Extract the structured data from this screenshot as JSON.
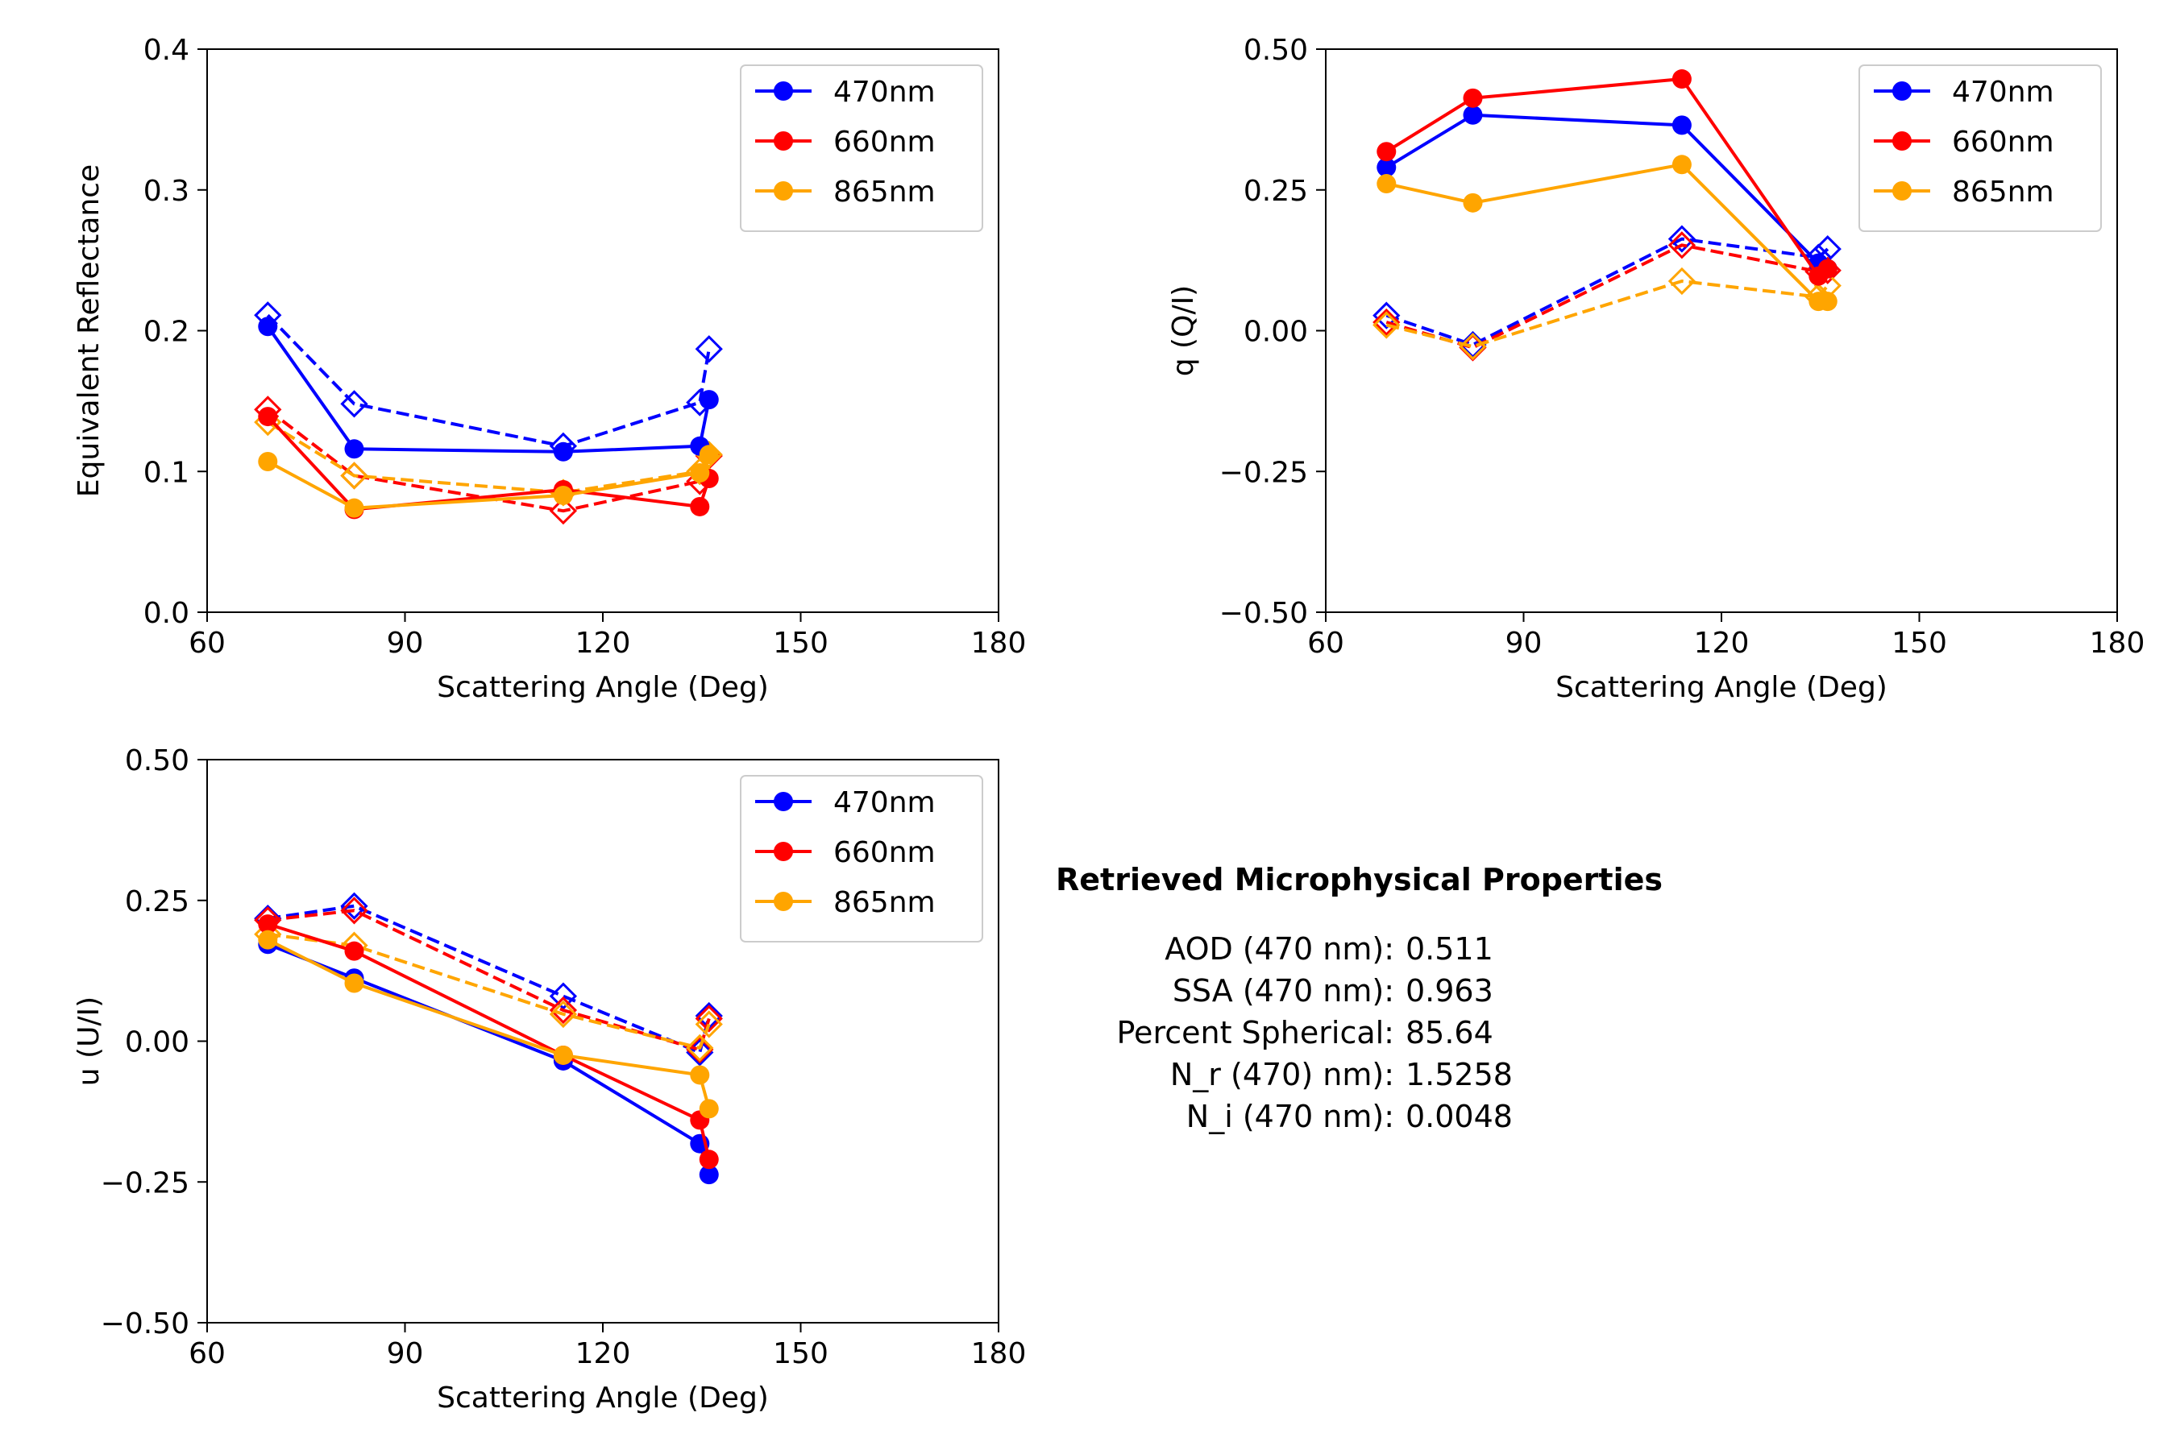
{
  "chart_data": [
    {
      "type": "line",
      "id": "reflectance",
      "title": "",
      "xlabel": "Scattering Angle (Deg)",
      "ylabel": "Equivalent Reflectance",
      "xlim": [
        60,
        180
      ],
      "ylim": [
        0.0,
        0.4
      ],
      "xticks": [
        "60",
        "90",
        "120",
        "150",
        "180"
      ],
      "yticks": [
        "0.0",
        "0.1",
        "0.2",
        "0.3",
        "0.4"
      ],
      "legend": "top-right",
      "grid": false,
      "series": [
        {
          "name": "470nm",
          "color": "#0000ff",
          "style": "solid",
          "marker": "circle",
          "legend": true,
          "points": [
            [
              69.2,
              0.203
            ],
            [
              82.3,
              0.116
            ],
            [
              114,
              0.114
            ],
            [
              134.7,
              0.118
            ],
            [
              136.1,
              0.151
            ]
          ]
        },
        {
          "name": "660nm",
          "color": "#ff0000",
          "style": "solid",
          "marker": "circle",
          "legend": true,
          "points": [
            [
              69.2,
              0.139
            ],
            [
              82.3,
              0.073
            ],
            [
              114,
              0.087
            ],
            [
              134.7,
              0.075
            ],
            [
              136.1,
              0.095
            ]
          ]
        },
        {
          "name": "865nm",
          "color": "#ffa500",
          "style": "solid",
          "marker": "circle",
          "legend": true,
          "points": [
            [
              69.2,
              0.107
            ],
            [
              82.3,
              0.074
            ],
            [
              114,
              0.083
            ],
            [
              134.7,
              0.099
            ],
            [
              136.1,
              0.112
            ]
          ]
        },
        {
          "name": "",
          "color": "#0000ff",
          "style": "dashed",
          "marker": "diamond",
          "legend": false,
          "points": [
            [
              69.2,
              0.211
            ],
            [
              82.3,
              0.148
            ],
            [
              114,
              0.118
            ],
            [
              134.7,
              0.149
            ],
            [
              136.1,
              0.187
            ]
          ]
        },
        {
          "name": "",
          "color": "#ff0000",
          "style": "dashed",
          "marker": "diamond",
          "legend": false,
          "points": [
            [
              69.2,
              0.144
            ],
            [
              82.3,
              0.097
            ],
            [
              114,
              0.072
            ],
            [
              134.7,
              0.093
            ],
            [
              136.1,
              0.111
            ]
          ]
        },
        {
          "name": "",
          "color": "#ffa500",
          "style": "dashed",
          "marker": "diamond",
          "legend": false,
          "points": [
            [
              69.2,
              0.135
            ],
            [
              82.3,
              0.097
            ],
            [
              114,
              0.085
            ],
            [
              134.7,
              0.1
            ],
            [
              136.1,
              0.112
            ]
          ]
        }
      ]
    },
    {
      "type": "line",
      "id": "q",
      "title": "",
      "xlabel": "Scattering Angle (Deg)",
      "ylabel": "q (Q/I)",
      "xlim": [
        60,
        180
      ],
      "ylim": [
        -0.5,
        0.5
      ],
      "xticks": [
        "60",
        "90",
        "120",
        "150",
        "180"
      ],
      "yticks": [
        "−0.50",
        "−0.25",
        "0.00",
        "0.25",
        "0.50"
      ],
      "legend": "top-right",
      "grid": false,
      "series": [
        {
          "name": "470nm",
          "color": "#0000ff",
          "style": "solid",
          "marker": "circle",
          "legend": true,
          "points": [
            [
              69.2,
              0.29
            ],
            [
              82.3,
              0.383
            ],
            [
              114,
              0.365
            ],
            [
              134.7,
              0.12
            ],
            [
              136.1,
              0.11
            ]
          ]
        },
        {
          "name": "660nm",
          "color": "#ff0000",
          "style": "solid",
          "marker": "circle",
          "legend": true,
          "points": [
            [
              69.2,
              0.318
            ],
            [
              82.3,
              0.413
            ],
            [
              114,
              0.447
            ],
            [
              134.7,
              0.097
            ],
            [
              136.1,
              0.11
            ]
          ]
        },
        {
          "name": "865nm",
          "color": "#ffa500",
          "style": "solid",
          "marker": "circle",
          "legend": true,
          "points": [
            [
              69.2,
              0.261
            ],
            [
              82.3,
              0.227
            ],
            [
              114,
              0.295
            ],
            [
              134.7,
              0.052
            ],
            [
              136.1,
              0.052
            ]
          ]
        },
        {
          "name": "",
          "color": "#0000ff",
          "style": "dashed",
          "marker": "diamond",
          "legend": false,
          "points": [
            [
              69.2,
              0.027
            ],
            [
              82.3,
              -0.025
            ],
            [
              114,
              0.163
            ],
            [
              134.7,
              0.13
            ],
            [
              136.1,
              0.145
            ]
          ]
        },
        {
          "name": "",
          "color": "#ff0000",
          "style": "dashed",
          "marker": "diamond",
          "legend": false,
          "points": [
            [
              69.2,
              0.015
            ],
            [
              82.3,
              -0.03
            ],
            [
              114,
              0.152
            ],
            [
              134.7,
              0.105
            ],
            [
              136.1,
              0.107
            ]
          ]
        },
        {
          "name": "",
          "color": "#ffa500",
          "style": "dashed",
          "marker": "diamond",
          "legend": false,
          "points": [
            [
              69.2,
              0.01
            ],
            [
              82.3,
              -0.028
            ],
            [
              114,
              0.088
            ],
            [
              134.7,
              0.06
            ],
            [
              136.1,
              0.08
            ]
          ]
        }
      ]
    },
    {
      "type": "line",
      "id": "u",
      "title": "",
      "xlabel": "Scattering Angle (Deg)",
      "ylabel": "u (U/I)",
      "xlim": [
        60,
        180
      ],
      "ylim": [
        -0.5,
        0.5
      ],
      "xticks": [
        "60",
        "90",
        "120",
        "150",
        "180"
      ],
      "yticks": [
        "−0.50",
        "−0.25",
        "0.00",
        "0.25",
        "0.50"
      ],
      "legend": "top-right",
      "grid": false,
      "series": [
        {
          "name": "470nm",
          "color": "#0000ff",
          "style": "solid",
          "marker": "circle",
          "legend": true,
          "points": [
            [
              69.2,
              0.172
            ],
            [
              82.3,
              0.112
            ],
            [
              114,
              -0.035
            ],
            [
              134.7,
              -0.182
            ],
            [
              136.1,
              -0.237
            ]
          ]
        },
        {
          "name": "660nm",
          "color": "#ff0000",
          "style": "solid",
          "marker": "circle",
          "legend": true,
          "points": [
            [
              69.2,
              0.208
            ],
            [
              82.3,
              0.16
            ],
            [
              114,
              -0.025
            ],
            [
              134.7,
              -0.14
            ],
            [
              136.1,
              -0.21
            ]
          ]
        },
        {
          "name": "865nm",
          "color": "#ffa500",
          "style": "solid",
          "marker": "circle",
          "legend": true,
          "points": [
            [
              69.2,
              0.18
            ],
            [
              82.3,
              0.103
            ],
            [
              114,
              -0.025
            ],
            [
              134.7,
              -0.06
            ],
            [
              136.1,
              -0.12
            ]
          ]
        },
        {
          "name": "",
          "color": "#0000ff",
          "style": "dashed",
          "marker": "diamond",
          "legend": false,
          "points": [
            [
              69.2,
              0.218
            ],
            [
              82.3,
              0.24
            ],
            [
              114,
              0.08
            ],
            [
              134.7,
              -0.02
            ],
            [
              136.1,
              0.045
            ]
          ]
        },
        {
          "name": "",
          "color": "#ff0000",
          "style": "dashed",
          "marker": "diamond",
          "legend": false,
          "points": [
            [
              69.2,
              0.215
            ],
            [
              82.3,
              0.232
            ],
            [
              114,
              0.055
            ],
            [
              134.7,
              -0.015
            ],
            [
              136.1,
              0.04
            ]
          ]
        },
        {
          "name": "",
          "color": "#ffa500",
          "style": "dashed",
          "marker": "diamond",
          "legend": false,
          "points": [
            [
              69.2,
              0.19
            ],
            [
              82.3,
              0.17
            ],
            [
              114,
              0.048
            ],
            [
              134.7,
              -0.012
            ],
            [
              136.1,
              0.03
            ]
          ]
        }
      ]
    }
  ],
  "properties": {
    "title": "Retrieved Microphysical Properties",
    "rows": [
      {
        "label": "AOD (470 nm):",
        "value": "0.511"
      },
      {
        "label": "SSA (470 nm):",
        "value": "0.963"
      },
      {
        "label": "Percent Spherical:",
        "value": "85.64"
      },
      {
        "label": "N_r (470) nm):",
        "value": "1.5258"
      },
      {
        "label": "N_i (470 nm):",
        "value": "0.0048"
      }
    ]
  }
}
